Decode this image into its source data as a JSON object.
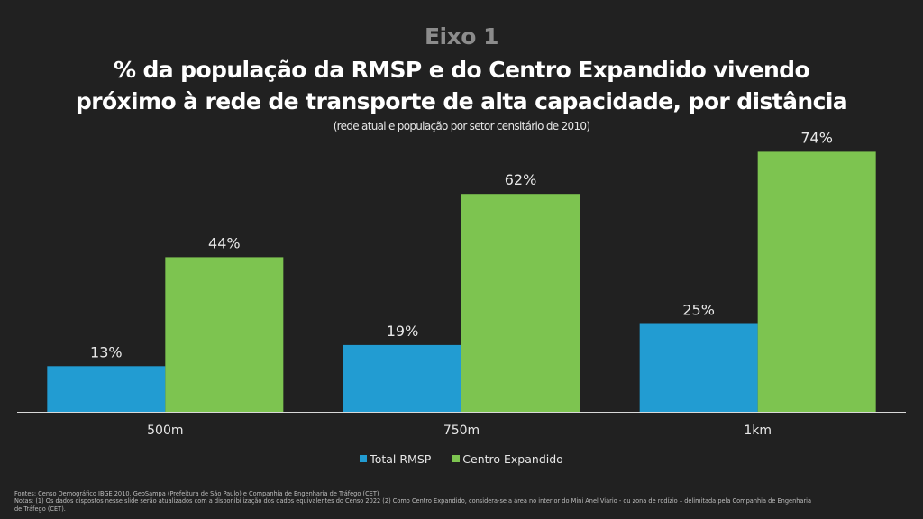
{
  "header": {
    "eyebrow": "Eixo 1",
    "title_line1": "% da população da RMSP e do Centro Expandido vivendo",
    "title_line2": "próximo à rede de transporte de alta capacidade, por distância",
    "subtitle": "(rede atual e população por setor censitário de 2010)"
  },
  "chart_data": {
    "type": "bar",
    "title": "% da população da RMSP e do Centro Expandido vivendo próximo à rede de transporte de alta capacidade, por distância",
    "subtitle": "(rede atual e população por setor censitário de 2010)",
    "xlabel": "",
    "ylabel": "",
    "categories": [
      "500m",
      "750m",
      "1km"
    ],
    "series": [
      {
        "name": "Total RMSP",
        "color": "#229CD2",
        "values": [
          13,
          19,
          25
        ],
        "labels": [
          "13%",
          "19%",
          "25%"
        ]
      },
      {
        "name": "Centro Expandido",
        "color": "#7DC450",
        "values": [
          44,
          62,
          74
        ],
        "labels": [
          "44%",
          "62%",
          "74%"
        ]
      }
    ],
    "ylim": [
      0,
      80
    ],
    "grid": false,
    "legend_position": "bottom-center"
  },
  "footer": {
    "sources": "Fontes: Censo Demográfico IBGE 2010, GeoSampa (Prefeitura de São Paulo) e Companhia de Engenharia de Tráfego (CET)",
    "notes_line1": "Notas: (1) Os dados dispostos nesse slide serão atualizados com a disponibilização dos dados equivalentes do Censo 2022 (2) Como Centro Expandido, considera-se  a área no interior do Mini Anel Viário - ou zona de rodízio – delimitada pela Companhia de Engenharia",
    "notes_line2": "de Tráfego (CET)."
  }
}
